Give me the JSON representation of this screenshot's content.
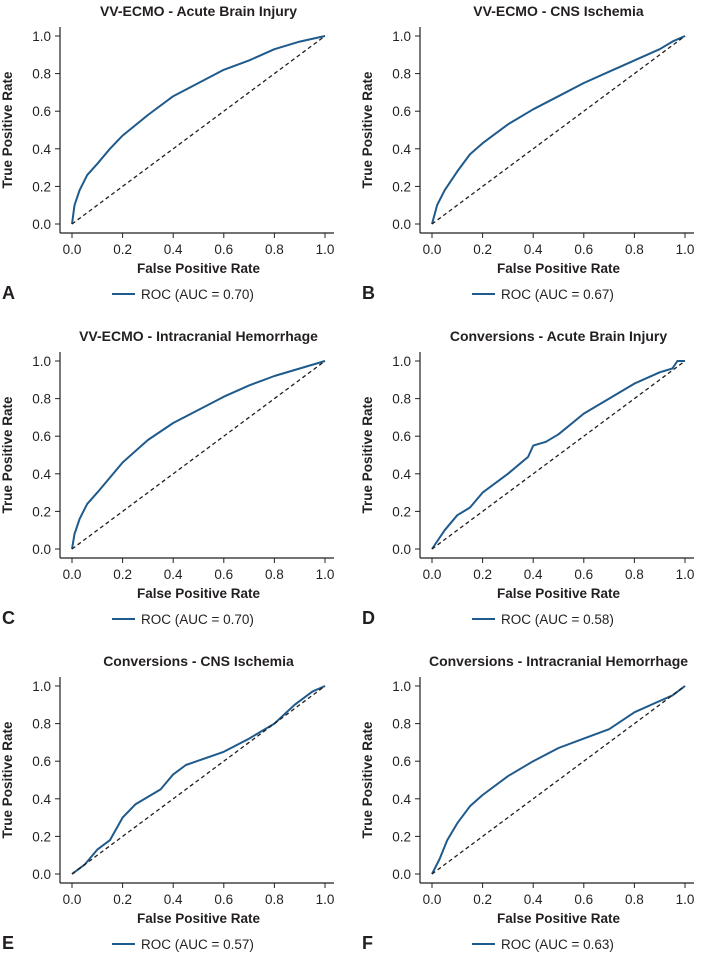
{
  "chart_data": [
    {
      "type": "line",
      "panel": "A",
      "title": "VV-ECMO - Acute Brain Injury",
      "xlabel": "False Positive Rate",
      "ylabel": "True Positive Rate",
      "xlim": [
        0,
        1
      ],
      "ylim": [
        0,
        1
      ],
      "ticks": [
        "0.0",
        "0.2",
        "0.4",
        "0.6",
        "0.8",
        "1.0"
      ],
      "legend": "ROC (AUC = 0.70)",
      "legend_placement": "bottom-center",
      "series": [
        {
          "name": "ROC",
          "color": "#1f5a8c",
          "x": [
            0,
            0.01,
            0.03,
            0.06,
            0.1,
            0.15,
            0.2,
            0.3,
            0.4,
            0.5,
            0.6,
            0.7,
            0.8,
            0.9,
            1
          ],
          "y": [
            0,
            0.1,
            0.18,
            0.26,
            0.32,
            0.4,
            0.47,
            0.58,
            0.68,
            0.75,
            0.82,
            0.87,
            0.93,
            0.97,
            1
          ]
        },
        {
          "name": "chance",
          "color": "#231f20",
          "x": [
            0,
            1
          ],
          "y": [
            0,
            1
          ]
        }
      ]
    },
    {
      "type": "line",
      "panel": "B",
      "title": "VV-ECMO - CNS Ischemia",
      "xlabel": "False Positive Rate",
      "ylabel": "True Positive Rate",
      "xlim": [
        0,
        1
      ],
      "ylim": [
        0,
        1
      ],
      "ticks": [
        "0.0",
        "0.2",
        "0.4",
        "0.6",
        "0.8",
        "1.0"
      ],
      "legend": "ROC (AUC = 0.67)",
      "legend_placement": "bottom-center",
      "series": [
        {
          "name": "ROC",
          "color": "#1f5a8c",
          "x": [
            0,
            0.02,
            0.05,
            0.1,
            0.15,
            0.2,
            0.3,
            0.4,
            0.5,
            0.6,
            0.7,
            0.8,
            0.9,
            0.95,
            1
          ],
          "y": [
            0,
            0.1,
            0.18,
            0.28,
            0.37,
            0.43,
            0.53,
            0.61,
            0.68,
            0.75,
            0.81,
            0.87,
            0.93,
            0.97,
            1
          ]
        },
        {
          "name": "chance",
          "color": "#231f20",
          "x": [
            0,
            1
          ],
          "y": [
            0,
            1
          ]
        }
      ]
    },
    {
      "type": "line",
      "panel": "C",
      "title": "VV-ECMO - Intracranial Hemorrhage",
      "xlabel": "False Positive Rate",
      "ylabel": "True Positive Rate",
      "xlim": [
        0,
        1
      ],
      "ylim": [
        0,
        1
      ],
      "ticks": [
        "0.0",
        "0.2",
        "0.4",
        "0.6",
        "0.8",
        "1.0"
      ],
      "legend": "ROC (AUC = 0.70)",
      "legend_placement": "bottom-center",
      "series": [
        {
          "name": "ROC",
          "color": "#1f5a8c",
          "x": [
            0,
            0.01,
            0.03,
            0.06,
            0.1,
            0.15,
            0.2,
            0.3,
            0.4,
            0.5,
            0.6,
            0.7,
            0.8,
            0.9,
            1
          ],
          "y": [
            0,
            0.08,
            0.16,
            0.24,
            0.3,
            0.38,
            0.46,
            0.58,
            0.67,
            0.74,
            0.81,
            0.87,
            0.92,
            0.96,
            1
          ]
        },
        {
          "name": "chance",
          "color": "#231f20",
          "x": [
            0,
            1
          ],
          "y": [
            0,
            1
          ]
        }
      ]
    },
    {
      "type": "line",
      "panel": "D",
      "title": "Conversions - Acute Brain Injury",
      "xlabel": "False Positive Rate",
      "ylabel": "True Positive Rate",
      "xlim": [
        0,
        1
      ],
      "ylim": [
        0,
        1
      ],
      "ticks": [
        "0.0",
        "0.2",
        "0.4",
        "0.6",
        "0.8",
        "1.0"
      ],
      "legend": "ROC (AUC = 0.58)",
      "legend_placement": "bottom-center",
      "series": [
        {
          "name": "ROC",
          "color": "#1f5a8c",
          "x": [
            0,
            0.05,
            0.1,
            0.15,
            0.2,
            0.3,
            0.38,
            0.4,
            0.45,
            0.5,
            0.6,
            0.7,
            0.8,
            0.9,
            0.95,
            0.97,
            1
          ],
          "y": [
            0,
            0.1,
            0.18,
            0.22,
            0.3,
            0.4,
            0.49,
            0.55,
            0.57,
            0.61,
            0.72,
            0.8,
            0.88,
            0.94,
            0.96,
            1,
            1
          ]
        },
        {
          "name": "chance",
          "color": "#231f20",
          "x": [
            0,
            1
          ],
          "y": [
            0,
            1
          ]
        }
      ]
    },
    {
      "type": "line",
      "panel": "E",
      "title": "Conversions - CNS Ischemia",
      "xlabel": "False Positive Rate",
      "ylabel": "True Positive Rate",
      "xlim": [
        0,
        1
      ],
      "ylim": [
        0,
        1
      ],
      "ticks": [
        "0.0",
        "0.2",
        "0.4",
        "0.6",
        "0.8",
        "1.0"
      ],
      "legend": "ROC (AUC = 0.57)",
      "legend_placement": "bottom-center",
      "series": [
        {
          "name": "ROC",
          "color": "#1f5a8c",
          "x": [
            0,
            0.05,
            0.1,
            0.15,
            0.2,
            0.25,
            0.35,
            0.4,
            0.45,
            0.6,
            0.7,
            0.8,
            0.88,
            0.95,
            1
          ],
          "y": [
            0,
            0.05,
            0.13,
            0.18,
            0.3,
            0.37,
            0.45,
            0.53,
            0.58,
            0.65,
            0.72,
            0.8,
            0.9,
            0.97,
            1
          ]
        },
        {
          "name": "chance",
          "color": "#231f20",
          "x": [
            0,
            1
          ],
          "y": [
            0,
            1
          ]
        }
      ]
    },
    {
      "type": "line",
      "panel": "F",
      "title": "Conversions - Intracranial Hemorrhage",
      "xlabel": "False Positive Rate",
      "ylabel": "True Positive Rate",
      "xlim": [
        0,
        1
      ],
      "ylim": [
        0,
        1
      ],
      "ticks": [
        "0.0",
        "0.2",
        "0.4",
        "0.6",
        "0.8",
        "1.0"
      ],
      "legend": "ROC (AUC = 0.63)",
      "legend_placement": "bottom-center",
      "series": [
        {
          "name": "ROC",
          "color": "#1f5a8c",
          "x": [
            0,
            0.03,
            0.06,
            0.1,
            0.15,
            0.2,
            0.3,
            0.4,
            0.5,
            0.6,
            0.7,
            0.8,
            0.9,
            0.95,
            1
          ],
          "y": [
            0,
            0.08,
            0.18,
            0.27,
            0.36,
            0.42,
            0.52,
            0.6,
            0.67,
            0.72,
            0.77,
            0.86,
            0.92,
            0.95,
            1
          ]
        },
        {
          "name": "chance",
          "color": "#231f20",
          "x": [
            0,
            1
          ],
          "y": [
            0,
            1
          ]
        }
      ]
    }
  ]
}
